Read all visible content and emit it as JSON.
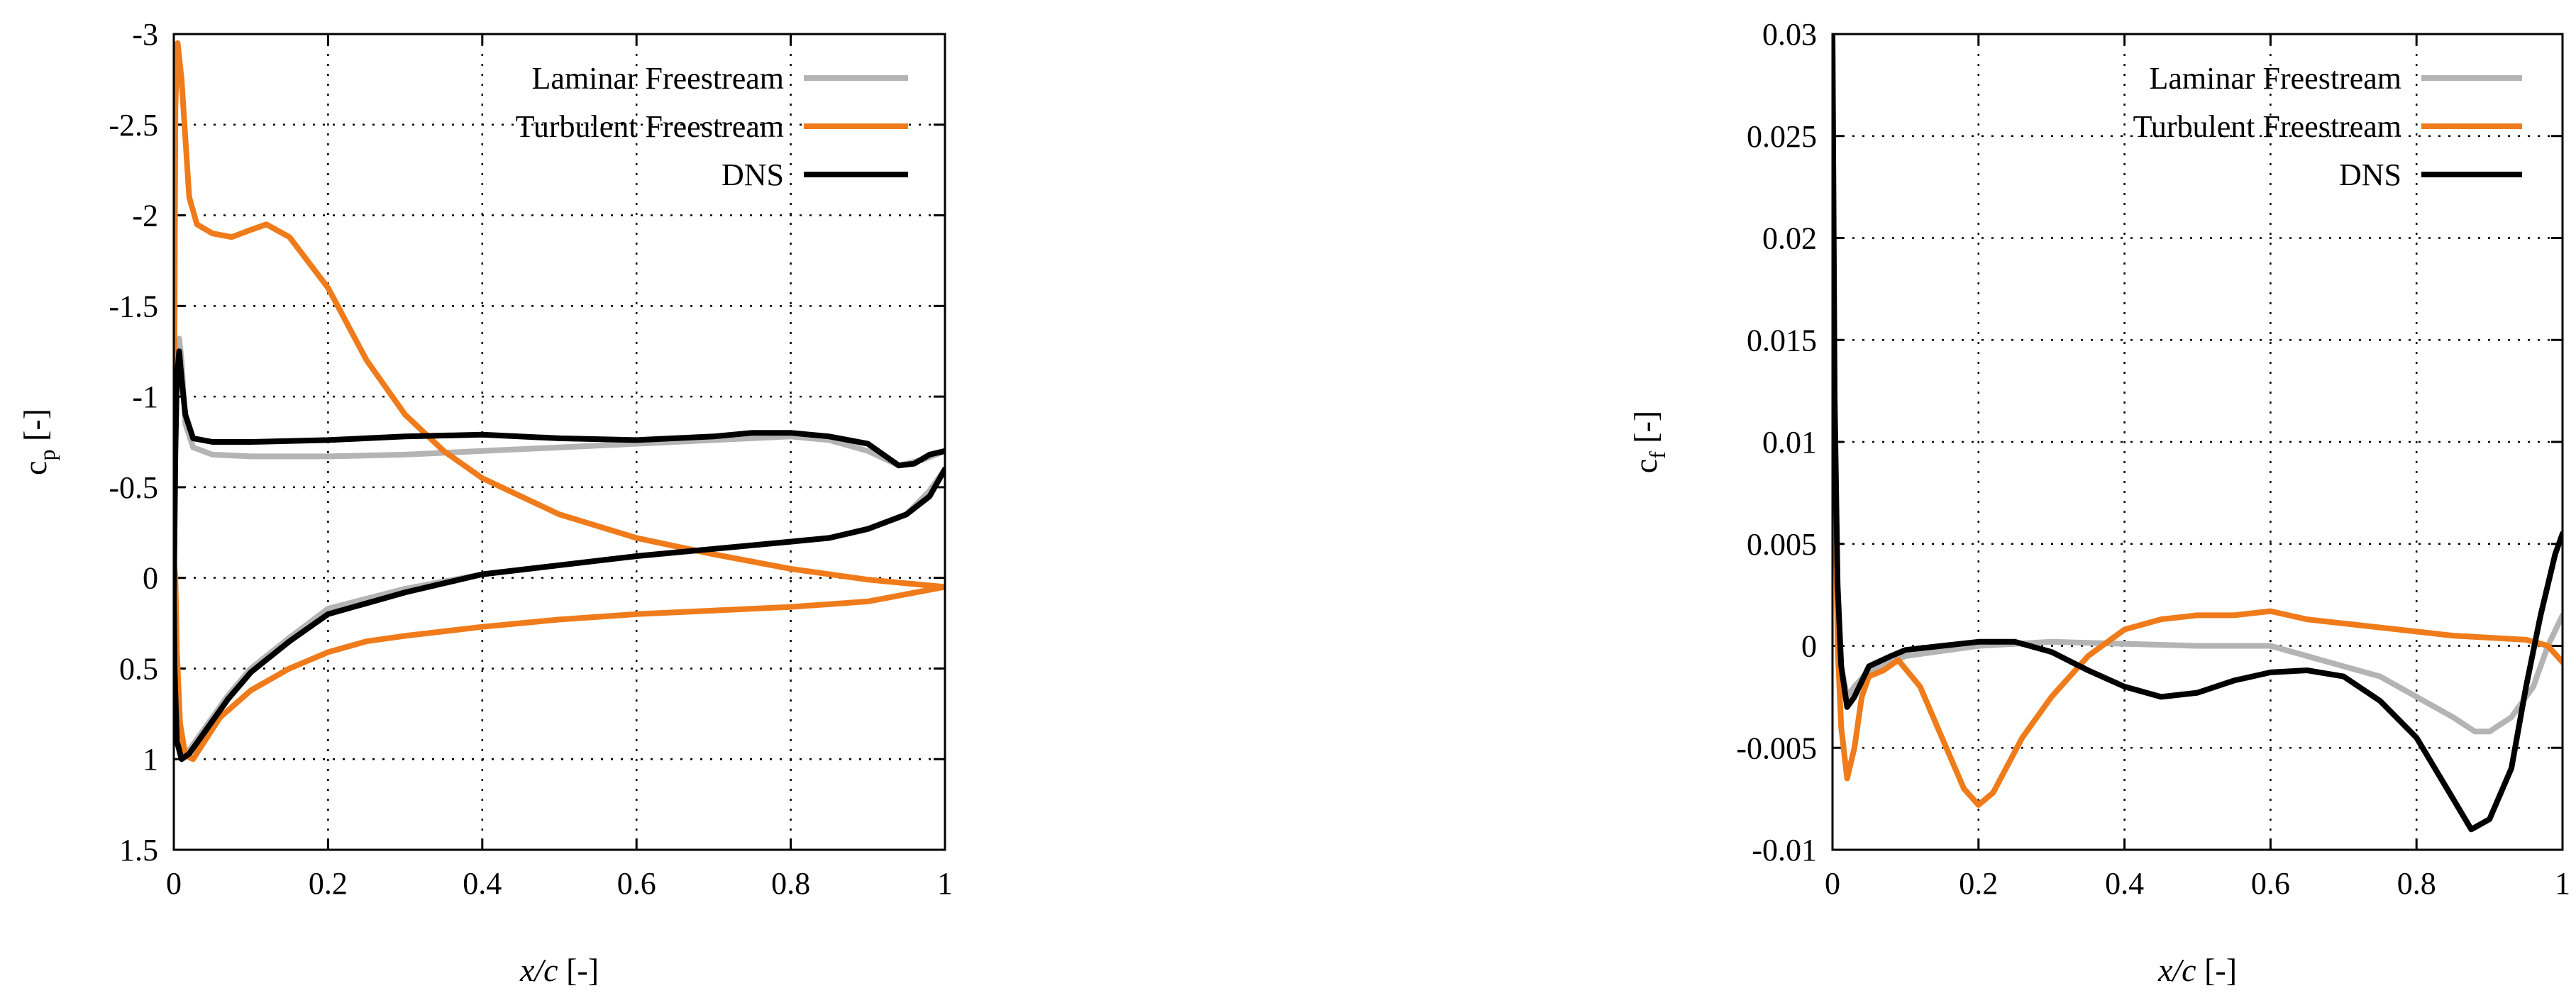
{
  "chart_data": [
    {
      "type": "line",
      "xlabel": "x/c [-]",
      "ylabel_main": "c",
      "ylabel_sub": "p",
      "ylabel_unit": "[-]",
      "xlim": [
        0,
        1
      ],
      "ylim": [
        -3,
        1.5
      ],
      "y_inverted": true,
      "grid": true,
      "legend_position": "top-right",
      "x_ticks": [
        0,
        0.2,
        0.4,
        0.6,
        0.8,
        1
      ],
      "x_tick_labels": [
        "0",
        "0.2",
        "0.4",
        "0.6",
        "0.8",
        "1"
      ],
      "y_ticks": [
        -3,
        -2.5,
        -2,
        -1.5,
        -1,
        -0.5,
        0,
        0.5,
        1,
        1.5
      ],
      "y_tick_labels": [
        "-3",
        "-2.5",
        "-2",
        "-1.5",
        "-1",
        "-0.5",
        "0",
        "0.5",
        "1",
        "1.5"
      ],
      "series": [
        {
          "name": "Laminar Freestream",
          "color": "#b4b4b4",
          "points": [
            [
              1.0,
              -0.7
            ],
            [
              0.97,
              -0.65
            ],
            [
              0.94,
              -0.62
            ],
            [
              0.9,
              -0.7
            ],
            [
              0.85,
              -0.76
            ],
            [
              0.8,
              -0.78
            ],
            [
              0.7,
              -0.76
            ],
            [
              0.6,
              -0.74
            ],
            [
              0.5,
              -0.72
            ],
            [
              0.4,
              -0.7
            ],
            [
              0.3,
              -0.68
            ],
            [
              0.2,
              -0.67
            ],
            [
              0.1,
              -0.67
            ],
            [
              0.05,
              -0.68
            ],
            [
              0.025,
              -0.72
            ],
            [
              0.015,
              -0.85
            ],
            [
              0.01,
              -1.2
            ],
            [
              0.007,
              -1.32
            ],
            [
              0.004,
              -1.1
            ],
            [
              0.002,
              -0.7
            ],
            [
              0.001,
              -0.3
            ],
            [
              0.0,
              0.2
            ],
            [
              0.001,
              0.6
            ],
            [
              0.004,
              0.9
            ],
            [
              0.01,
              0.98
            ],
            [
              0.02,
              0.95
            ],
            [
              0.04,
              0.83
            ],
            [
              0.07,
              0.65
            ],
            [
              0.1,
              0.5
            ],
            [
              0.15,
              0.33
            ],
            [
              0.2,
              0.17
            ],
            [
              0.3,
              0.06
            ],
            [
              0.4,
              -0.02
            ],
            [
              0.5,
              -0.07
            ],
            [
              0.6,
              -0.12
            ],
            [
              0.7,
              -0.16
            ],
            [
              0.8,
              -0.2
            ],
            [
              0.85,
              -0.22
            ],
            [
              0.9,
              -0.27
            ],
            [
              0.95,
              -0.35
            ],
            [
              0.98,
              -0.48
            ],
            [
              1.0,
              -0.6
            ]
          ]
        },
        {
          "name": "Turbulent Freestream",
          "color": "#f07b1a",
          "points": [
            [
              0.0,
              -0.1
            ],
            [
              0.001,
              -1.5
            ],
            [
              0.002,
              -2.6
            ],
            [
              0.005,
              -2.95
            ],
            [
              0.01,
              -2.75
            ],
            [
              0.02,
              -2.1
            ],
            [
              0.03,
              -1.95
            ],
            [
              0.05,
              -1.9
            ],
            [
              0.075,
              -1.88
            ],
            [
              0.1,
              -1.92
            ],
            [
              0.12,
              -1.95
            ],
            [
              0.15,
              -1.88
            ],
            [
              0.2,
              -1.6
            ],
            [
              0.25,
              -1.2
            ],
            [
              0.3,
              -0.9
            ],
            [
              0.35,
              -0.7
            ],
            [
              0.4,
              -0.55
            ],
            [
              0.5,
              -0.35
            ],
            [
              0.6,
              -0.22
            ],
            [
              0.7,
              -0.13
            ],
            [
              0.8,
              -0.05
            ],
            [
              0.9,
              0.01
            ],
            [
              1.0,
              0.05
            ],
            [
              0.9,
              0.13
            ],
            [
              0.8,
              0.16
            ],
            [
              0.7,
              0.18
            ],
            [
              0.6,
              0.2
            ],
            [
              0.5,
              0.23
            ],
            [
              0.4,
              0.27
            ],
            [
              0.3,
              0.32
            ],
            [
              0.25,
              0.35
            ],
            [
              0.2,
              0.41
            ],
            [
              0.15,
              0.5
            ],
            [
              0.1,
              0.62
            ],
            [
              0.06,
              0.77
            ],
            [
              0.04,
              0.9
            ],
            [
              0.025,
              1.0
            ],
            [
              0.015,
              0.98
            ],
            [
              0.008,
              0.8
            ],
            [
              0.004,
              0.4
            ],
            [
              0.002,
              0.0
            ],
            [
              0.0,
              -0.1
            ]
          ]
        },
        {
          "name": "DNS",
          "color": "#000000",
          "points": [
            [
              1.0,
              -0.7
            ],
            [
              0.98,
              -0.68
            ],
            [
              0.96,
              -0.63
            ],
            [
              0.94,
              -0.62
            ],
            [
              0.92,
              -0.68
            ],
            [
              0.9,
              -0.74
            ],
            [
              0.85,
              -0.78
            ],
            [
              0.8,
              -0.8
            ],
            [
              0.75,
              -0.8
            ],
            [
              0.7,
              -0.78
            ],
            [
              0.6,
              -0.76
            ],
            [
              0.5,
              -0.77
            ],
            [
              0.4,
              -0.79
            ],
            [
              0.3,
              -0.78
            ],
            [
              0.2,
              -0.76
            ],
            [
              0.1,
              -0.75
            ],
            [
              0.05,
              -0.75
            ],
            [
              0.025,
              -0.77
            ],
            [
              0.015,
              -0.9
            ],
            [
              0.01,
              -1.1
            ],
            [
              0.007,
              -1.25
            ],
            [
              0.004,
              -1.1
            ],
            [
              0.002,
              -0.7
            ],
            [
              0.001,
              -0.3
            ],
            [
              0.0,
              0.1
            ],
            [
              0.001,
              0.5
            ],
            [
              0.004,
              0.9
            ],
            [
              0.01,
              1.0
            ],
            [
              0.02,
              0.97
            ],
            [
              0.04,
              0.85
            ],
            [
              0.07,
              0.67
            ],
            [
              0.1,
              0.52
            ],
            [
              0.15,
              0.35
            ],
            [
              0.2,
              0.2
            ],
            [
              0.3,
              0.08
            ],
            [
              0.4,
              -0.02
            ],
            [
              0.5,
              -0.07
            ],
            [
              0.6,
              -0.12
            ],
            [
              0.7,
              -0.16
            ],
            [
              0.8,
              -0.2
            ],
            [
              0.85,
              -0.22
            ],
            [
              0.9,
              -0.27
            ],
            [
              0.95,
              -0.35
            ],
            [
              0.98,
              -0.45
            ],
            [
              1.0,
              -0.6
            ]
          ]
        }
      ]
    },
    {
      "type": "line",
      "xlabel": "x/c [-]",
      "ylabel_main": "c",
      "ylabel_sub": "f",
      "ylabel_unit": "[-]",
      "xlim": [
        0,
        1
      ],
      "ylim": [
        -0.01,
        0.03
      ],
      "y_inverted": false,
      "grid": true,
      "legend_position": "top-right",
      "x_ticks": [
        0,
        0.2,
        0.4,
        0.6,
        0.8,
        1
      ],
      "x_tick_labels": [
        "0",
        "0.2",
        "0.4",
        "0.6",
        "0.8",
        "1"
      ],
      "y_ticks": [
        0.03,
        0.025,
        0.02,
        0.015,
        0.01,
        0.005,
        0,
        -0.005,
        -0.01
      ],
      "y_tick_labels": [
        "0.03",
        "0.025",
        "0.02",
        "0.015",
        "0.01",
        "0.005",
        "0",
        "-0.005",
        "-0.01"
      ],
      "series": [
        {
          "name": "Laminar Freestream",
          "color": "#b4b4b4",
          "points": [
            [
              0.0,
              0.03
            ],
            [
              0.003,
              0.01
            ],
            [
              0.007,
              0.002
            ],
            [
              0.012,
              -0.001
            ],
            [
              0.02,
              -0.0025
            ],
            [
              0.03,
              -0.002
            ],
            [
              0.05,
              -0.0012
            ],
            [
              0.1,
              -0.0005
            ],
            [
              0.2,
              0.0
            ],
            [
              0.3,
              0.0002
            ],
            [
              0.4,
              0.0001
            ],
            [
              0.5,
              0.0
            ],
            [
              0.6,
              0.0
            ],
            [
              0.65,
              -0.0005
            ],
            [
              0.7,
              -0.001
            ],
            [
              0.75,
              -0.0015
            ],
            [
              0.8,
              -0.0025
            ],
            [
              0.85,
              -0.0035
            ],
            [
              0.88,
              -0.0042
            ],
            [
              0.9,
              -0.0042
            ],
            [
              0.93,
              -0.0035
            ],
            [
              0.96,
              -0.002
            ],
            [
              0.98,
              0.0
            ],
            [
              1.0,
              0.0015
            ]
          ]
        },
        {
          "name": "Turbulent Freestream",
          "color": "#f07b1a",
          "points": [
            [
              0.0,
              0.025
            ],
            [
              0.003,
              0.01
            ],
            [
              0.007,
              0.0
            ],
            [
              0.012,
              -0.004
            ],
            [
              0.02,
              -0.0065
            ],
            [
              0.03,
              -0.005
            ],
            [
              0.04,
              -0.0025
            ],
            [
              0.05,
              -0.0015
            ],
            [
              0.07,
              -0.0012
            ],
            [
              0.09,
              -0.0007
            ],
            [
              0.12,
              -0.002
            ],
            [
              0.15,
              -0.0045
            ],
            [
              0.18,
              -0.007
            ],
            [
              0.2,
              -0.0078
            ],
            [
              0.22,
              -0.0072
            ],
            [
              0.26,
              -0.0045
            ],
            [
              0.3,
              -0.0025
            ],
            [
              0.35,
              -0.0005
            ],
            [
              0.4,
              0.0008
            ],
            [
              0.45,
              0.0013
            ],
            [
              0.5,
              0.0015
            ],
            [
              0.55,
              0.0015
            ],
            [
              0.6,
              0.0017
            ],
            [
              0.65,
              0.0013
            ],
            [
              0.7,
              0.0011
            ],
            [
              0.75,
              0.0009
            ],
            [
              0.8,
              0.0007
            ],
            [
              0.85,
              0.0005
            ],
            [
              0.9,
              0.0004
            ],
            [
              0.95,
              0.0003
            ],
            [
              0.98,
              0.0
            ],
            [
              1.0,
              -0.0008
            ]
          ]
        },
        {
          "name": "DNS",
          "color": "#000000",
          "points": [
            [
              0.0,
              0.03
            ],
            [
              0.003,
              0.012
            ],
            [
              0.007,
              0.003
            ],
            [
              0.012,
              -0.001
            ],
            [
              0.02,
              -0.003
            ],
            [
              0.03,
              -0.0025
            ],
            [
              0.05,
              -0.001
            ],
            [
              0.08,
              -0.0005
            ],
            [
              0.1,
              -0.0002
            ],
            [
              0.15,
              0.0
            ],
            [
              0.2,
              0.0002
            ],
            [
              0.25,
              0.0002
            ],
            [
              0.3,
              -0.0003
            ],
            [
              0.35,
              -0.0012
            ],
            [
              0.4,
              -0.002
            ],
            [
              0.45,
              -0.0025
            ],
            [
              0.5,
              -0.0023
            ],
            [
              0.55,
              -0.0017
            ],
            [
              0.6,
              -0.0013
            ],
            [
              0.65,
              -0.0012
            ],
            [
              0.7,
              -0.0015
            ],
            [
              0.75,
              -0.0027
            ],
            [
              0.8,
              -0.0045
            ],
            [
              0.85,
              -0.0075
            ],
            [
              0.875,
              -0.009
            ],
            [
              0.9,
              -0.0085
            ],
            [
              0.93,
              -0.006
            ],
            [
              0.95,
              -0.002
            ],
            [
              0.97,
              0.0015
            ],
            [
              0.99,
              0.0045
            ],
            [
              1.0,
              0.0055
            ]
          ]
        }
      ]
    }
  ]
}
